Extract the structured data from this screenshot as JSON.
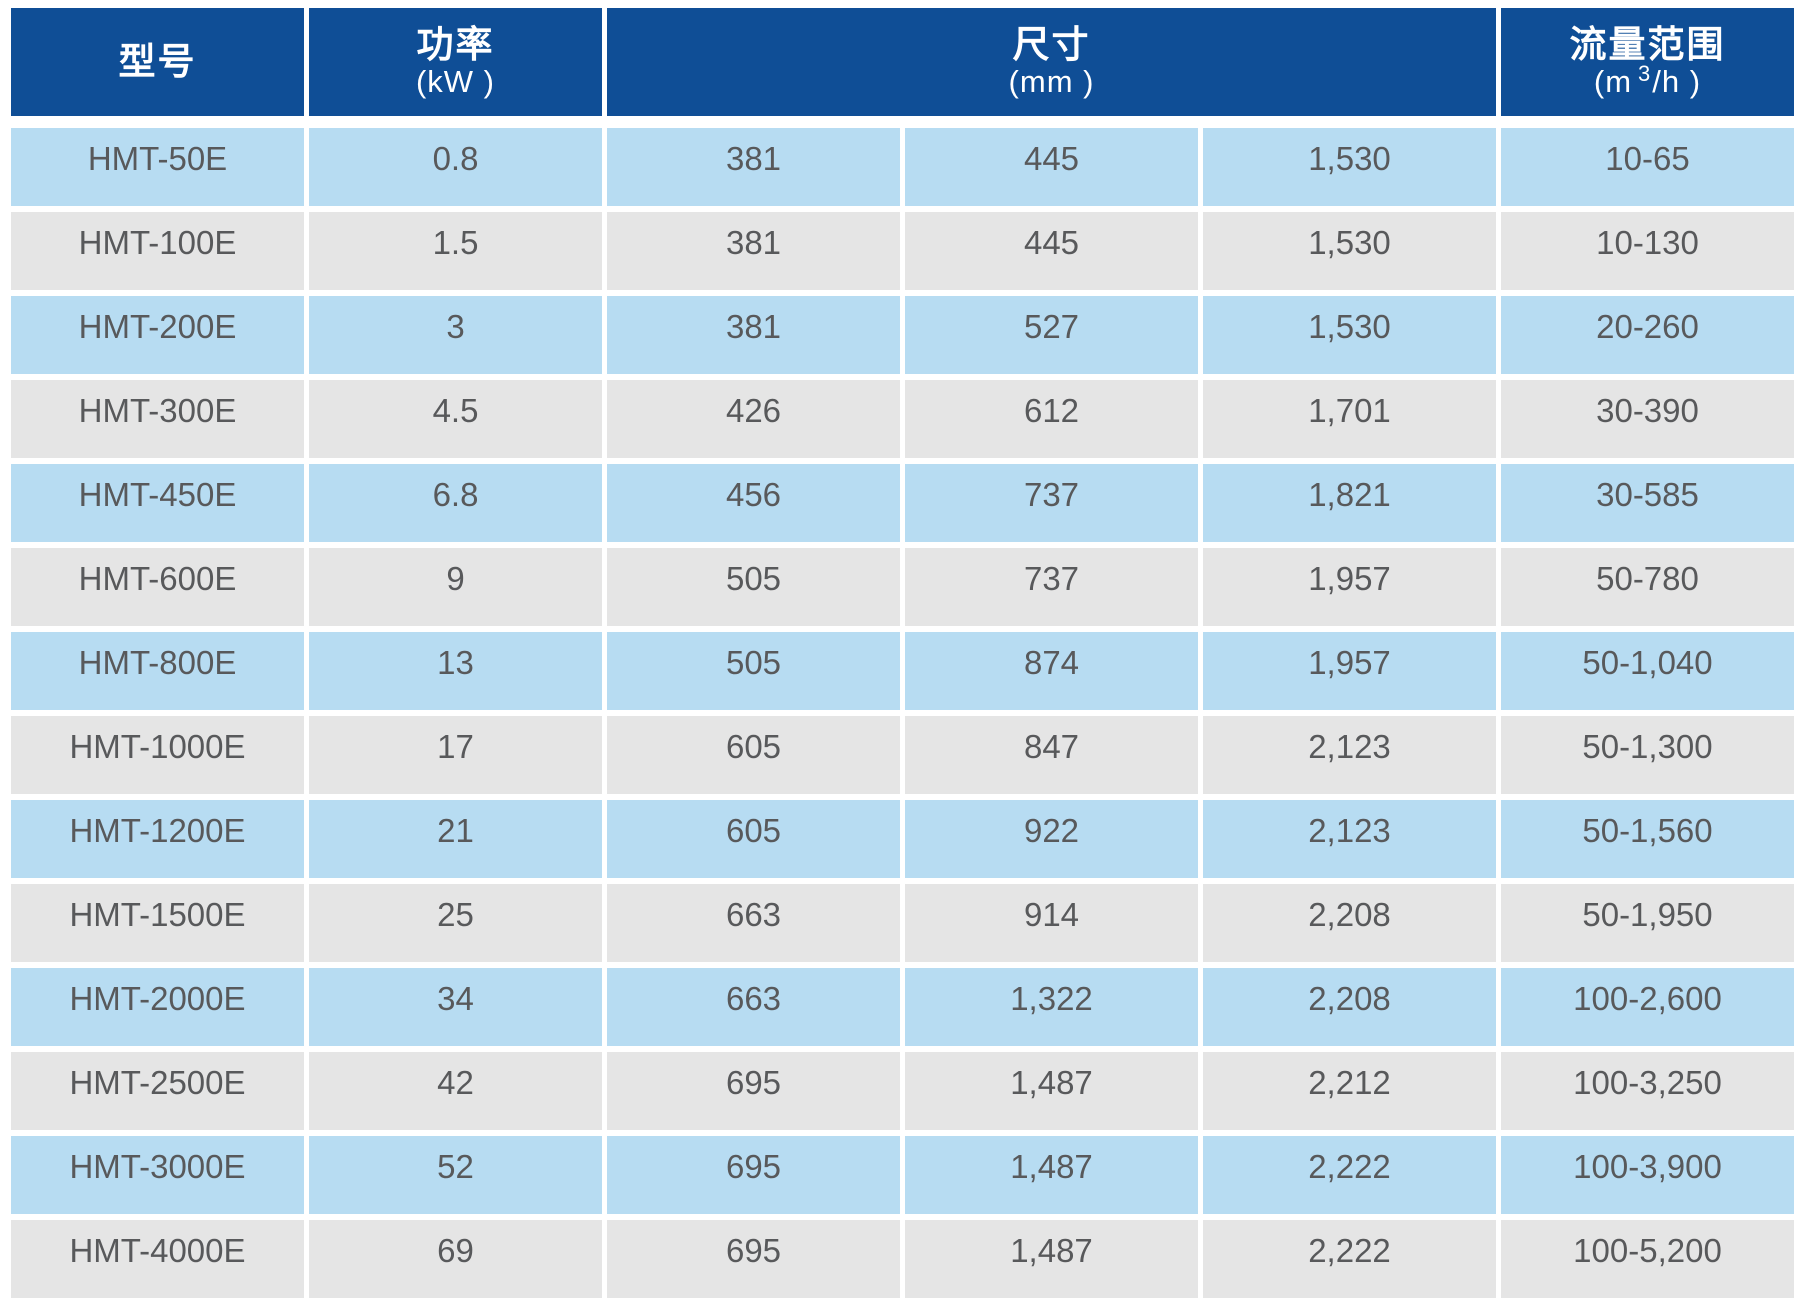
{
  "colors": {
    "header_bg": "#0f4e96",
    "header_text": "#ffffff",
    "row_blue_bg": "#b7dcf2",
    "row_gray_bg": "#e5e5e5",
    "cell_text": "#58595b"
  },
  "chart_data": {
    "type": "table",
    "header": {
      "model_title": "型号",
      "power_title": "功率",
      "power_unit": "(kW )",
      "dimensions_title": "尺寸",
      "dimensions_unit": "(mm )",
      "dimensions_colspan": 3,
      "flow_title": "流量范围",
      "flow_unit_prefix": "(m",
      "flow_unit_sup": "3",
      "flow_unit_suffix": "/h )"
    },
    "rows": [
      {
        "model": "HMT-50E",
        "power": "0.8",
        "dims": [
          "381",
          "445",
          "1,530"
        ],
        "flow": "10-65"
      },
      {
        "model": "HMT-100E",
        "power": "1.5",
        "dims": [
          "381",
          "445",
          "1,530"
        ],
        "flow": "10-130"
      },
      {
        "model": "HMT-200E",
        "power": "3",
        "dims": [
          "381",
          "527",
          "1,530"
        ],
        "flow": "20-260"
      },
      {
        "model": "HMT-300E",
        "power": "4.5",
        "dims": [
          "426",
          "612",
          "1,701"
        ],
        "flow": "30-390"
      },
      {
        "model": "HMT-450E",
        "power": "6.8",
        "dims": [
          "456",
          "737",
          "1,821"
        ],
        "flow": "30-585"
      },
      {
        "model": "HMT-600E",
        "power": "9",
        "dims": [
          "505",
          "737",
          "1,957"
        ],
        "flow": "50-780"
      },
      {
        "model": "HMT-800E",
        "power": "13",
        "dims": [
          "505",
          "874",
          "1,957"
        ],
        "flow": "50-1,040"
      },
      {
        "model": "HMT-1000E",
        "power": "17",
        "dims": [
          "605",
          "847",
          "2,123"
        ],
        "flow": "50-1,300"
      },
      {
        "model": "HMT-1200E",
        "power": "21",
        "dims": [
          "605",
          "922",
          "2,123"
        ],
        "flow": "50-1,560"
      },
      {
        "model": "HMT-1500E",
        "power": "25",
        "dims": [
          "663",
          "914",
          "2,208"
        ],
        "flow": "50-1,950"
      },
      {
        "model": "HMT-2000E",
        "power": "34",
        "dims": [
          "663",
          "1,322",
          "2,208"
        ],
        "flow": "100-2,600"
      },
      {
        "model": "HMT-2500E",
        "power": "42",
        "dims": [
          "695",
          "1,487",
          "2,212"
        ],
        "flow": "100-3,250"
      },
      {
        "model": "HMT-3000E",
        "power": "52",
        "dims": [
          "695",
          "1,487",
          "2,222"
        ],
        "flow": "100-3,900"
      },
      {
        "model": "HMT-4000E",
        "power": "69",
        "dims": [
          "695",
          "1,487",
          "2,222"
        ],
        "flow": "100-5,200"
      }
    ]
  }
}
